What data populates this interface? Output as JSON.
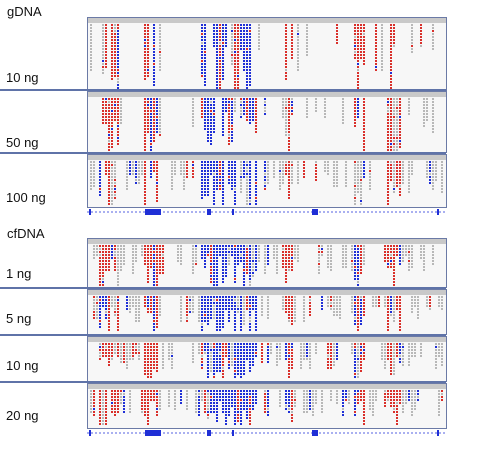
{
  "groups": [
    {
      "id": "gdna",
      "label": "gDNA",
      "panels": [
        {
          "label": "10 ng",
          "density": 0.35
        },
        {
          "label": "50 ng",
          "density": 0.55
        },
        {
          "label": "100 ng",
          "density": 0.65
        }
      ]
    },
    {
      "id": "cfdna",
      "label": "cfDNA",
      "panels": [
        {
          "label": "1 ng",
          "density": 0.9
        },
        {
          "label": "5 ng",
          "density": 0.85
        },
        {
          "label": "10 ng",
          "density": 0.85
        },
        {
          "label": "20 ng",
          "density": 0.85
        }
      ]
    }
  ],
  "colors": {
    "forward_read": "#d9302b",
    "reverse_read": "#1f2fd6",
    "neutral_read": "#b8b8b8",
    "panel_border": "#6b7aa6",
    "separator": "#5f73a8",
    "gene_feature": "#1f2fd6"
  }
}
